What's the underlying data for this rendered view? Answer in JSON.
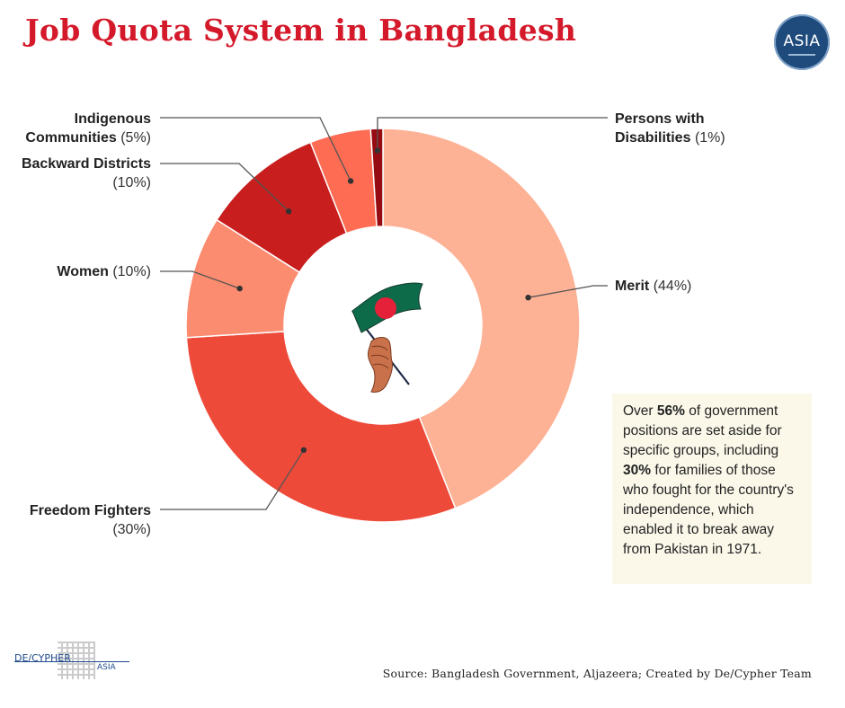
{
  "header": {
    "title": "Job Quota System in Bangladesh",
    "title_color": "#d4192a",
    "badge_text": "ASIA"
  },
  "chart_data": {
    "type": "donut",
    "title": "Job Quota System in Bangladesh",
    "series": [
      {
        "label": "Merit",
        "value": 44,
        "display": "(44%)",
        "color": "#fdb195"
      },
      {
        "label": "Freedom Fighters",
        "value": 30,
        "display": "(30%)",
        "color": "#ee4a39"
      },
      {
        "label": "Women",
        "value": 10,
        "display": "(10%)",
        "color": "#fc8c6f"
      },
      {
        "label": "Backward Districts",
        "value": 10,
        "display": "(10%)",
        "color": "#c81e1e"
      },
      {
        "label": "Indigenous Communities",
        "value": 5,
        "display": "(5%)",
        "color": "#fe6c54"
      },
      {
        "label": "Persons with Disabilities",
        "value": 1,
        "display": "(1%)",
        "color": "#960c12"
      }
    ],
    "center_icon": "hand-holding-bangladesh-flag"
  },
  "labels": {
    "indigenous": {
      "line1": "Indigenous",
      "line2": "Communities",
      "pct": "(5%)"
    },
    "disabilities": {
      "line1": "Persons with",
      "line2": "Disabilities",
      "pct": "(1%)"
    },
    "backward": {
      "line1": "Backward Districts",
      "pct": "(10%)"
    },
    "women": {
      "line1": "Women",
      "pct": "(10%)"
    },
    "merit": {
      "line1": "Merit",
      "pct": "(44%)"
    },
    "freedom": {
      "line1": "Freedom Fighters",
      "pct": "(30%)"
    }
  },
  "note": {
    "t1": "Over ",
    "b1": "56%",
    "t2": " of government positions are set aside for specific groups, including ",
    "b2": "30%",
    "t3": " for families of those who fought for the country's independence, which enabled it to break away from Pakistan in 1971."
  },
  "footer": {
    "brand_left": "DE/CYPHER",
    "brand_right": "ASIA",
    "source": "Source: Bangladesh Government, Aljazeera; Created by De/Cypher Team"
  }
}
